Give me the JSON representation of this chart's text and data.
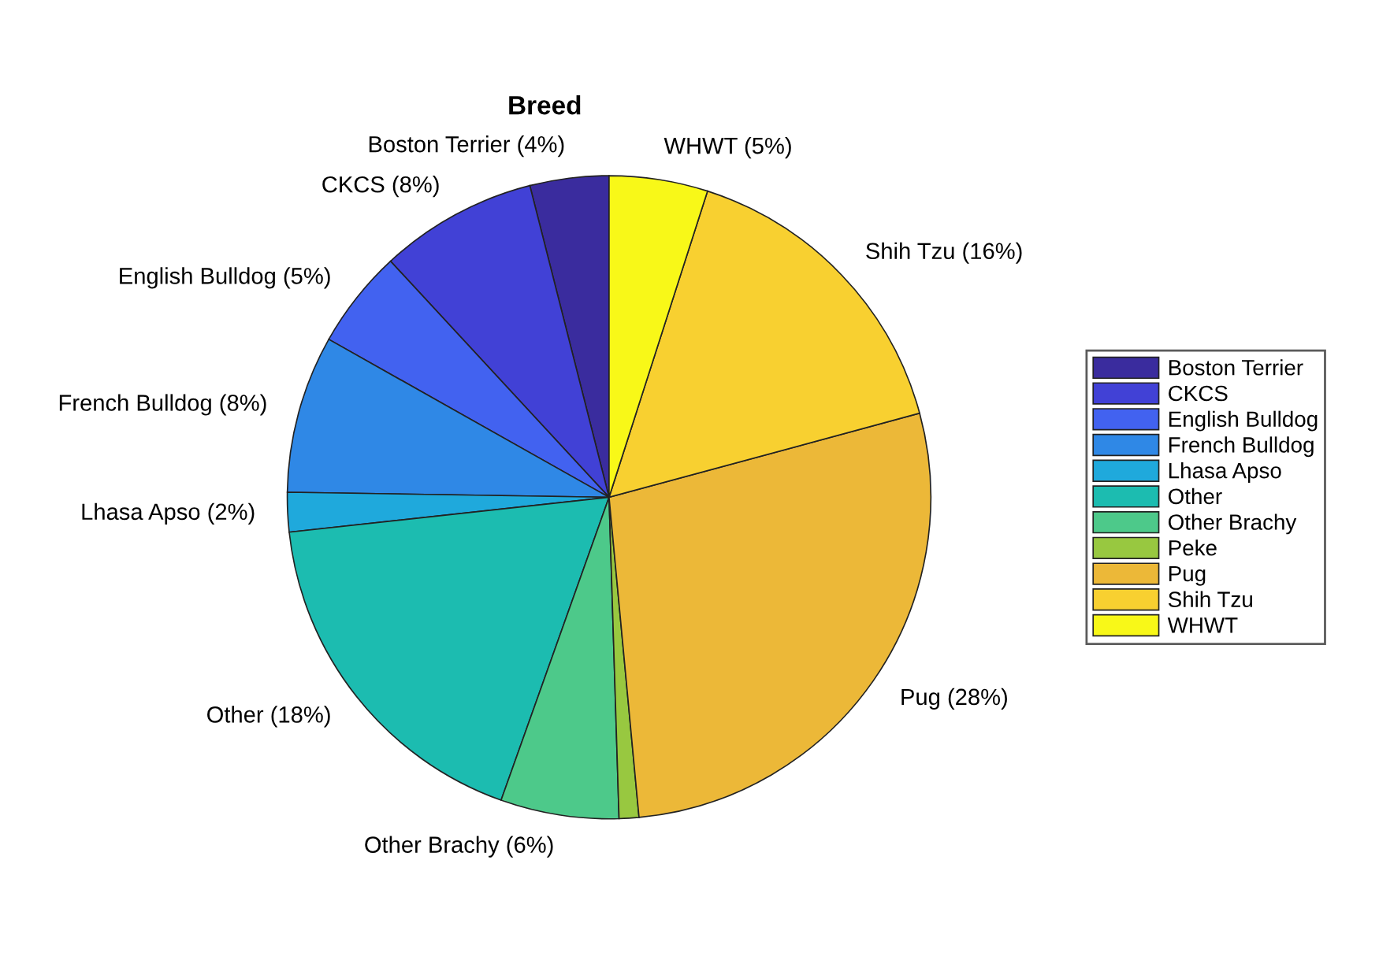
{
  "chart_data": {
    "type": "pie",
    "title": "Breed",
    "categories": [
      "Boston Terrier",
      "CKCS",
      "English Bulldog",
      "French Bulldog",
      "Lhasa Apso",
      "Other",
      "Other Brachy",
      "Peke",
      "Pug",
      "Shih Tzu",
      "WHWT"
    ],
    "values": [
      4,
      8,
      5,
      8,
      2,
      18,
      6,
      1,
      28,
      16,
      5
    ],
    "value_labels": [
      "Boston Terrier (4%)",
      "CKCS (8%)",
      "English Bulldog (5%)",
      "French Bulldog (8%)",
      "Lhasa Apso (2%)",
      "Other (18%)",
      "Other Brachy (6%)",
      null,
      "Pug (28%)",
      "Shih Tzu (16%)",
      "WHWT (5%)"
    ],
    "colors": [
      "#3a2c9e",
      "#4141d6",
      "#4262f0",
      "#2f88e6",
      "#1fa9dc",
      "#1cbcb0",
      "#4dc98a",
      "#98c840",
      "#ecb838",
      "#f8d030",
      "#f8f818"
    ],
    "legend": "right"
  }
}
